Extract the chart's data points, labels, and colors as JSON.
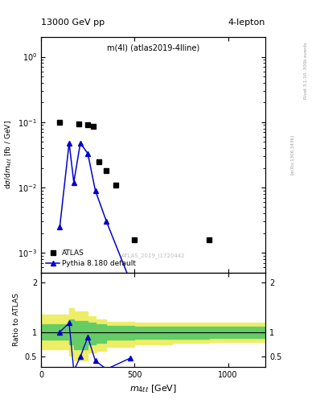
{
  "title_left": "13000 GeV pp",
  "title_right": "4-lepton",
  "plot_label": "m(4l) (atlas2019-4lline)",
  "watermark": "ATLAS_2019_I1720442",
  "right_label_main": "Rivet 3.1.10, 300k events",
  "right_label_sub": "[arXiv:1306.3436]",
  "atlas_x": [
    100,
    200,
    250,
    280,
    310,
    350,
    400,
    500,
    900
  ],
  "atlas_y": [
    0.1,
    0.095,
    0.09,
    0.085,
    0.025,
    0.018,
    0.011,
    0.0016,
    0.0016
  ],
  "pythia_x": [
    100,
    150,
    175,
    210,
    250,
    290,
    350,
    475
  ],
  "pythia_y": [
    0.0025,
    0.048,
    0.012,
    0.048,
    0.033,
    0.009,
    0.003,
    0.00038
  ],
  "ratio_x": [
    100,
    150,
    175,
    210,
    250,
    290,
    350,
    475
  ],
  "ratio_y": [
    1.0,
    1.18,
    0.22,
    0.5,
    0.9,
    0.42,
    0.25,
    0.47
  ],
  "band_x": [
    0,
    100,
    150,
    175,
    210,
    250,
    290,
    350,
    500,
    700,
    900,
    1200
  ],
  "band_green_lo": [
    0.85,
    0.85,
    0.75,
    0.65,
    0.65,
    0.75,
    0.78,
    0.84,
    0.86,
    0.87,
    0.88,
    0.89
  ],
  "band_green_hi": [
    1.15,
    1.15,
    1.25,
    1.22,
    1.22,
    1.18,
    1.15,
    1.12,
    1.11,
    1.11,
    1.11,
    1.11
  ],
  "band_yellow_lo": [
    0.65,
    0.65,
    0.52,
    0.42,
    0.42,
    0.58,
    0.62,
    0.7,
    0.75,
    0.78,
    0.8,
    0.82
  ],
  "band_yellow_hi": [
    1.35,
    1.35,
    1.48,
    1.42,
    1.42,
    1.32,
    1.25,
    1.2,
    1.18,
    1.18,
    1.18,
    1.18
  ],
  "xlim": [
    0,
    1200
  ],
  "xticks": [
    0,
    500,
    1000
  ],
  "ylim_main": [
    0.0005,
    2.0
  ],
  "ylim_ratio": [
    0.3,
    2.2
  ],
  "yticks_ratio_left": [
    0.5,
    1.0,
    2.0
  ],
  "yticks_ratio_right": [
    0.5,
    1.0,
    2.0
  ],
  "atlas_color": "#000000",
  "pythia_color": "#0000cc",
  "band_green_color": "#66cc66",
  "band_yellow_color": "#eeee66"
}
